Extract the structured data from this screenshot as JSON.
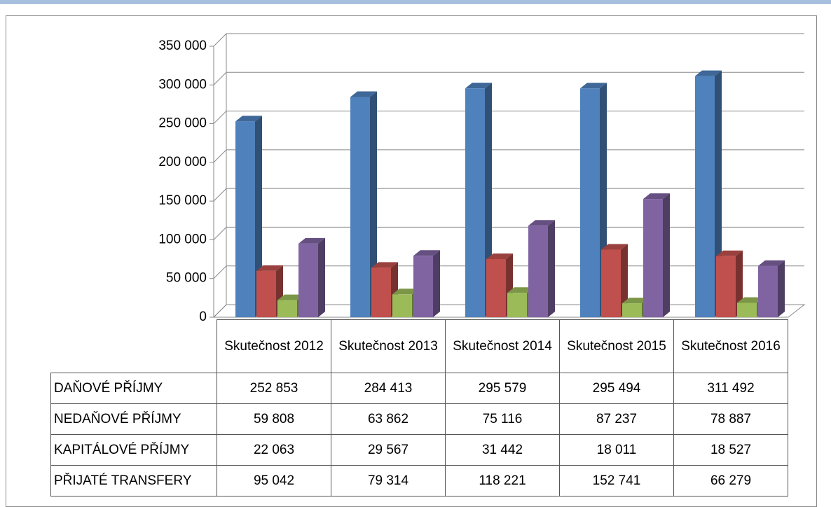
{
  "chart_data": {
    "type": "bar3d",
    "categories": [
      "Skutečnost 2012",
      "Skutečnost 2013",
      "Skutečnost 2014",
      "Skutečnost 2015",
      "Skutečnost 2016"
    ],
    "series": [
      {
        "name": "DAŇOVÉ PŘÍJMY",
        "color": "#4f81bd",
        "values": [
          252853,
          284413,
          295579,
          295494,
          311492
        ],
        "value_labels": [
          "252 853",
          "284 413",
          "295 579",
          "295 494",
          "311 492"
        ]
      },
      {
        "name": "NEDAŇOVÉ PŘÍJMY",
        "color": "#c0504d",
        "values": [
          59808,
          63862,
          75116,
          87237,
          78887
        ],
        "value_labels": [
          "59 808",
          "63 862",
          "75 116",
          "87 237",
          "78 887"
        ]
      },
      {
        "name": "KAPITÁLOVÉ PŘÍJMY",
        "color": "#9bbb59",
        "values": [
          22063,
          29567,
          31442,
          18011,
          18527
        ],
        "value_labels": [
          "22 063",
          "29 567",
          "31 442",
          "18 011",
          "18 527"
        ]
      },
      {
        "name": "PŘIJATÉ TRANSFERY",
        "color": "#8064a2",
        "values": [
          95042,
          79314,
          118221,
          152741,
          66279
        ],
        "value_labels": [
          "95 042",
          "79 314",
          "118 221",
          "152 741",
          "66 279"
        ]
      }
    ],
    "ylim": [
      0,
      350000
    ],
    "yticks": [
      0,
      {
        "value": 50000,
        "label": "50 000"
      },
      {
        "value": 100000,
        "label": "100 000"
      },
      {
        "value": 150000,
        "label": "150 000"
      },
      {
        "value": 200000,
        "label": "200 000"
      },
      {
        "value": 250000,
        "label": "250 000"
      },
      {
        "value": 300000,
        "label": "300 000"
      },
      {
        "value": 350000,
        "label": "350 000"
      }
    ],
    "grid": true
  }
}
